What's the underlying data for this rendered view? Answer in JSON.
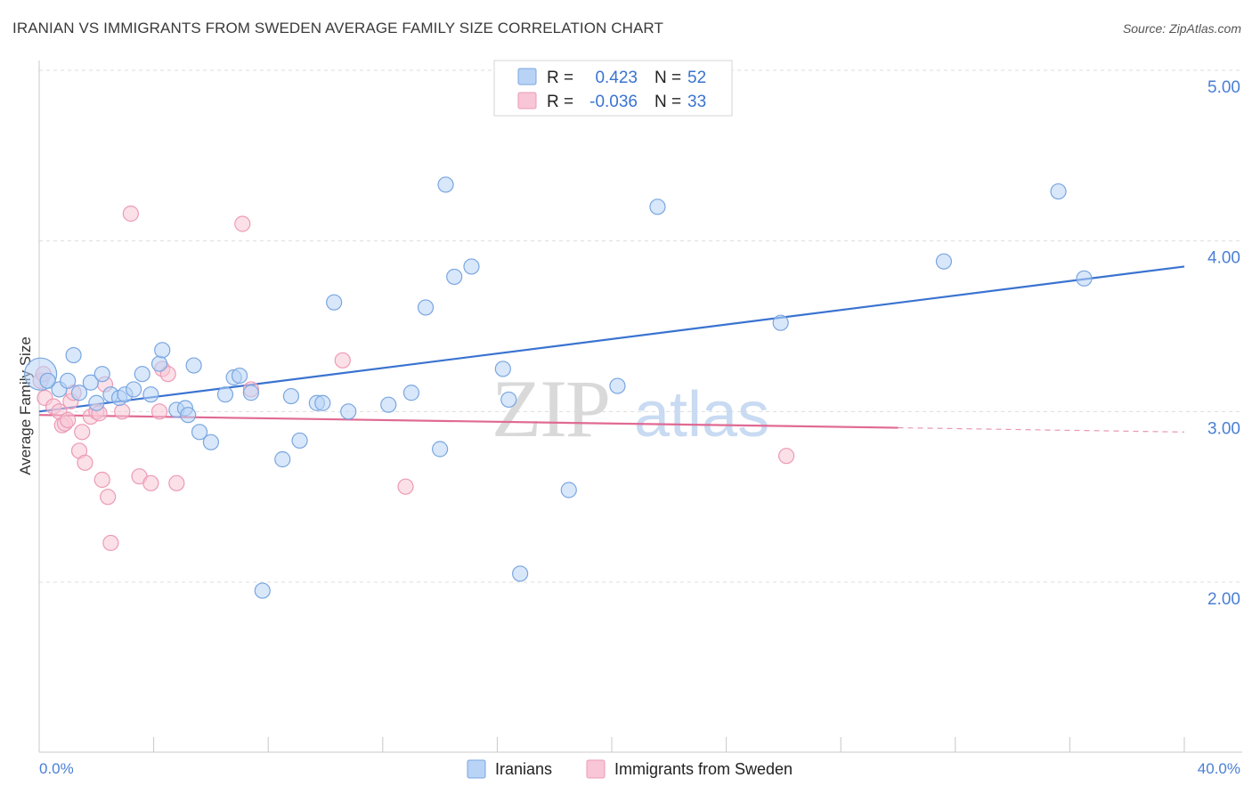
{
  "title": "IRANIAN VS IMMIGRANTS FROM SWEDEN AVERAGE FAMILY SIZE CORRELATION CHART",
  "source": "Source: ZipAtlas.com",
  "watermark": {
    "zip": "ZIP",
    "atlas": "atlas"
  },
  "legend_top": {
    "rows": [
      {
        "r_label": "R =",
        "r_value": "0.423",
        "n_label": "N =",
        "n_value": "52"
      },
      {
        "r_label": "R =",
        "r_value": "-0.036",
        "n_label": "N =",
        "n_value": "33"
      }
    ]
  },
  "colors": {
    "blue": "#3a73d0",
    "blue_fill": "#b8d3f5",
    "blue_stroke": "#7aa6e0",
    "pink": "#e06a93",
    "pink_fill": "#f8c6d6",
    "pink_stroke": "#ec9ab6",
    "grid": "#dddddd",
    "tick_text": "#4a7fd4"
  },
  "chart_data": {
    "type": "scatter",
    "title": "IRANIAN VS IMMIGRANTS FROM SWEDEN AVERAGE FAMILY SIZE CORRELATION CHART",
    "xlabel": "",
    "ylabel": "Average Family Size",
    "xlim": [
      0,
      40
    ],
    "ylim": [
      1.0,
      5.1
    ],
    "x_tick_labels": [
      "0.0%",
      "40.0%"
    ],
    "y_ticks": [
      2.0,
      3.0,
      4.0,
      5.0
    ],
    "y_tick_labels": [
      "2.00",
      "3.00",
      "4.00",
      "5.00"
    ],
    "grid": true,
    "legend_position": "top-center",
    "series": [
      {
        "name": "Iranians",
        "color": "#3a73d0",
        "r": 0.423,
        "n": 52,
        "trend": {
          "x0": 0,
          "y0": 3.0,
          "x1": 40,
          "y1": 3.85,
          "dashed_from": null
        },
        "points": [
          [
            0.05,
            3.22
          ],
          [
            0.3,
            3.18
          ],
          [
            0.7,
            3.13
          ],
          [
            1.0,
            3.18
          ],
          [
            1.2,
            3.33
          ],
          [
            1.4,
            3.11
          ],
          [
            1.8,
            3.17
          ],
          [
            2.0,
            3.05
          ],
          [
            2.2,
            3.22
          ],
          [
            2.5,
            3.1
          ],
          [
            2.8,
            3.08
          ],
          [
            3.0,
            3.1
          ],
          [
            3.3,
            3.13
          ],
          [
            3.6,
            3.22
          ],
          [
            3.9,
            3.1
          ],
          [
            4.2,
            3.28
          ],
          [
            4.3,
            3.36
          ],
          [
            4.8,
            3.01
          ],
          [
            5.1,
            3.02
          ],
          [
            5.2,
            2.98
          ],
          [
            5.4,
            3.27
          ],
          [
            5.6,
            2.88
          ],
          [
            6.0,
            2.82
          ],
          [
            6.5,
            3.1
          ],
          [
            6.8,
            3.2
          ],
          [
            7.0,
            3.21
          ],
          [
            7.4,
            3.11
          ],
          [
            7.8,
            1.95
          ],
          [
            8.5,
            2.72
          ],
          [
            8.8,
            3.09
          ],
          [
            9.1,
            2.83
          ],
          [
            9.7,
            3.05
          ],
          [
            9.9,
            3.05
          ],
          [
            10.3,
            3.64
          ],
          [
            10.8,
            3.0
          ],
          [
            12.2,
            3.04
          ],
          [
            13.0,
            3.11
          ],
          [
            13.5,
            3.61
          ],
          [
            14.0,
            2.78
          ],
          [
            14.2,
            4.33
          ],
          [
            14.5,
            3.79
          ],
          [
            15.1,
            3.85
          ],
          [
            16.2,
            3.25
          ],
          [
            16.4,
            3.07
          ],
          [
            16.8,
            2.05
          ],
          [
            18.5,
            2.54
          ],
          [
            20.2,
            3.15
          ],
          [
            21.6,
            4.2
          ],
          [
            25.9,
            3.52
          ],
          [
            31.6,
            3.88
          ],
          [
            35.6,
            4.29
          ],
          [
            36.5,
            3.78
          ]
        ]
      },
      {
        "name": "Immigrants from Sweden",
        "color": "#e06a93",
        "r": -0.036,
        "n": 33,
        "trend": {
          "x0": 0,
          "y0": 2.98,
          "x1": 40,
          "y1": 2.88,
          "dashed_from": 30
        },
        "points": [
          [
            0.05,
            3.18
          ],
          [
            0.2,
            3.08
          ],
          [
            0.5,
            3.03
          ],
          [
            0.7,
            3.0
          ],
          [
            0.8,
            2.92
          ],
          [
            0.9,
            2.93
          ],
          [
            1.0,
            2.95
          ],
          [
            1.1,
            3.06
          ],
          [
            1.2,
            3.11
          ],
          [
            1.4,
            2.77
          ],
          [
            1.5,
            2.88
          ],
          [
            1.6,
            2.7
          ],
          [
            1.8,
            2.97
          ],
          [
            2.0,
            3.0
          ],
          [
            2.1,
            2.99
          ],
          [
            2.2,
            2.6
          ],
          [
            2.3,
            3.16
          ],
          [
            2.4,
            2.5
          ],
          [
            2.5,
            2.23
          ],
          [
            2.9,
            3.0
          ],
          [
            3.2,
            4.16
          ],
          [
            3.5,
            2.62
          ],
          [
            3.9,
            2.58
          ],
          [
            4.2,
            3.0
          ],
          [
            4.3,
            3.25
          ],
          [
            4.5,
            3.22
          ],
          [
            4.8,
            2.58
          ],
          [
            7.1,
            4.1
          ],
          [
            7.4,
            3.13
          ],
          [
            10.6,
            3.3
          ],
          [
            12.8,
            2.56
          ],
          [
            26.1,
            2.74
          ],
          [
            0.15,
            3.22
          ]
        ]
      }
    ]
  },
  "bottom_legend": [
    "Iranians",
    "Immigrants from Sweden"
  ]
}
